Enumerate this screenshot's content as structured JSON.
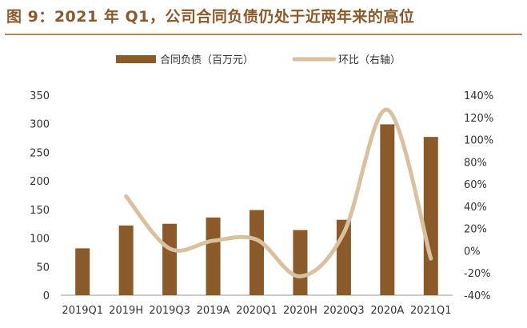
{
  "title": "图 9：2021 年 Q1，公司合同负债仍处于近两年来的高位",
  "colors": {
    "bar": "#8B5A2B",
    "line": "#D9C1A0",
    "title": "#8B5A2B",
    "rule": "#B8875A"
  },
  "chart_data": {
    "type": "bar",
    "categories": [
      "2019Q1",
      "2019H",
      "2019Q3",
      "2019A",
      "2020Q1",
      "2020H",
      "2020Q3",
      "2020A",
      "2021Q1"
    ],
    "series": [
      {
        "name": "合同负债（百万元）",
        "type": "bar",
        "axis": "left",
        "values": [
          82,
          122,
          125,
          136,
          149,
          114,
          132,
          299,
          277
        ]
      },
      {
        "name": "环比（右轴）",
        "type": "line",
        "axis": "right",
        "values": [
          null,
          49,
          2,
          9,
          10,
          -23,
          16,
          127,
          -7
        ]
      }
    ],
    "y_left": {
      "min": 0,
      "max": 350,
      "ticks": [
        "0",
        "50",
        "100",
        "150",
        "200",
        "250",
        "300",
        "350"
      ]
    },
    "y_right": {
      "min": -40,
      "max": 140,
      "ticks": [
        "-40%",
        "-20%",
        "0%",
        "20%",
        "40%",
        "60%",
        "80%",
        "100%",
        "120%",
        "140%"
      ]
    },
    "grid": false,
    "legend_position": "top"
  }
}
